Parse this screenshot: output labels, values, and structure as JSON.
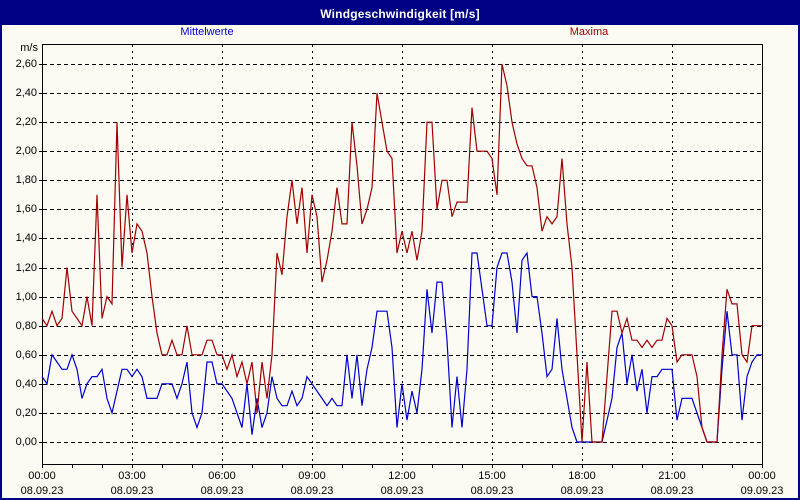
{
  "window": {
    "title": "Windgeschwindigkeit [m/s]"
  },
  "legend": {
    "mean_label": "Mittelwerte",
    "max_label": "Maxima"
  },
  "colors": {
    "frame": "#000084",
    "title_bar": "#000084",
    "title_text": "#FFFFFF",
    "background": "#FBFBF3",
    "mean_line": "#0000CC",
    "max_line": "#A00000",
    "grid": "#000000",
    "axis": "#000000"
  },
  "axes": {
    "y_unit": "m/s",
    "y_ticks": [
      "0,00",
      "0,20",
      "0,40",
      "0,60",
      "0,80",
      "1,00",
      "1,20",
      "1,40",
      "1,60",
      "1,80",
      "2,00",
      "2,20",
      "2,40",
      "2,60"
    ],
    "x_ticks": [
      {
        "hour": 0,
        "time": "00:00",
        "date": "08.09.23"
      },
      {
        "hour": 3,
        "time": "03:00",
        "date": "08.09.23"
      },
      {
        "hour": 6,
        "time": "06:00",
        "date": "08.09.23"
      },
      {
        "hour": 9,
        "time": "09:00",
        "date": "08.09.23"
      },
      {
        "hour": 12,
        "time": "12:00",
        "date": "08.09.23"
      },
      {
        "hour": 15,
        "time": "15:00",
        "date": "08.09.23"
      },
      {
        "hour": 18,
        "time": "18:00",
        "date": "08.09.23"
      },
      {
        "hour": 21,
        "time": "21:00",
        "date": "08.09.23"
      },
      {
        "hour": 24,
        "time": "00:00",
        "date": "09.09.23"
      }
    ]
  },
  "chart_data": {
    "type": "line",
    "title": "Windgeschwindigkeit [m/s]",
    "ylabel": "m/s",
    "ylim": [
      0,
      2.6
    ],
    "y_step": 0.2,
    "x_hours": [
      0,
      24
    ],
    "x_major_step_hours": 3,
    "x_minor_step_hours": 1,
    "sample_interval_minutes": 10,
    "x_start": "08.09.23 00:00",
    "x_end": "09.09.23 00:00",
    "grid": "dashed",
    "legend_position": "top",
    "series": [
      {
        "name": "Mittelwerte",
        "color": "#0000CC",
        "values": [
          0.45,
          0.4,
          0.6,
          0.55,
          0.5,
          0.5,
          0.6,
          0.5,
          0.3,
          0.4,
          0.45,
          0.45,
          0.5,
          0.3,
          0.2,
          0.35,
          0.5,
          0.5,
          0.45,
          0.5,
          0.45,
          0.3,
          0.3,
          0.3,
          0.4,
          0.4,
          0.4,
          0.3,
          0.4,
          0.55,
          0.2,
          0.1,
          0.2,
          0.55,
          0.55,
          0.4,
          0.4,
          0.35,
          0.3,
          0.2,
          0.1,
          0.4,
          0.05,
          0.3,
          0.1,
          0.2,
          0.45,
          0.3,
          0.25,
          0.25,
          0.35,
          0.25,
          0.3,
          0.45,
          0.4,
          0.35,
          0.3,
          0.25,
          0.3,
          0.25,
          0.25,
          0.6,
          0.3,
          0.6,
          0.25,
          0.5,
          0.65,
          0.9,
          0.9,
          0.9,
          0.65,
          0.1,
          0.4,
          0.15,
          0.35,
          0.2,
          0.5,
          1.05,
          0.75,
          1.1,
          1.1,
          0.7,
          0.1,
          0.45,
          0.1,
          0.5,
          1.3,
          1.3,
          1.05,
          0.8,
          0.8,
          1.2,
          1.3,
          1.3,
          1.1,
          0.75,
          1.25,
          1.3,
          1.0,
          1.0,
          0.75,
          0.45,
          0.5,
          0.85,
          0.5,
          0.3,
          0.1,
          0.0,
          0.0,
          0.0,
          0.0,
          0.0,
          0.0,
          0.15,
          0.3,
          0.65,
          0.75,
          0.4,
          0.6,
          0.35,
          0.5,
          0.2,
          0.45,
          0.45,
          0.5,
          0.5,
          0.5,
          0.15,
          0.3,
          0.3,
          0.3,
          0.2,
          0.1,
          0.0,
          0.0,
          0.0,
          0.5,
          0.9,
          0.6,
          0.6,
          0.15,
          0.45,
          0.55,
          0.6,
          0.6
        ]
      },
      {
        "name": "Maxima",
        "color": "#A00000",
        "values": [
          0.85,
          0.8,
          0.9,
          0.8,
          0.85,
          1.2,
          0.9,
          0.85,
          0.8,
          1.0,
          0.8,
          1.7,
          0.85,
          1.0,
          0.95,
          2.2,
          1.2,
          1.7,
          1.3,
          1.5,
          1.45,
          1.3,
          1.0,
          0.75,
          0.6,
          0.6,
          0.7,
          0.6,
          0.6,
          0.8,
          0.6,
          0.6,
          0.6,
          0.7,
          0.7,
          0.6,
          0.6,
          0.5,
          0.6,
          0.45,
          0.55,
          0.4,
          0.55,
          0.2,
          0.55,
          0.3,
          0.6,
          1.3,
          1.15,
          1.55,
          1.8,
          1.5,
          1.75,
          1.3,
          1.7,
          1.55,
          1.1,
          1.25,
          1.45,
          1.75,
          1.5,
          1.5,
          2.2,
          1.9,
          1.5,
          1.6,
          1.75,
          2.4,
          2.2,
          2.0,
          1.95,
          1.3,
          1.45,
          1.3,
          1.45,
          1.25,
          1.45,
          2.2,
          2.2,
          1.6,
          1.8,
          1.8,
          1.55,
          1.65,
          1.65,
          1.65,
          2.3,
          2.0,
          2.0,
          2.0,
          1.95,
          1.7,
          2.6,
          2.45,
          2.2,
          2.05,
          1.95,
          1.9,
          1.9,
          1.75,
          1.45,
          1.55,
          1.5,
          1.55,
          1.95,
          1.5,
          1.2,
          0.6,
          0.0,
          0.55,
          0.0,
          0.0,
          0.0,
          0.45,
          0.9,
          0.9,
          0.75,
          0.85,
          0.7,
          0.7,
          0.65,
          0.7,
          0.65,
          0.7,
          0.7,
          0.85,
          0.8,
          0.55,
          0.6,
          0.6,
          0.6,
          0.45,
          0.1,
          0.0,
          0.0,
          0.0,
          0.6,
          1.05,
          0.95,
          0.95,
          0.6,
          0.55,
          0.8,
          0.8,
          0.8
        ]
      }
    ]
  }
}
